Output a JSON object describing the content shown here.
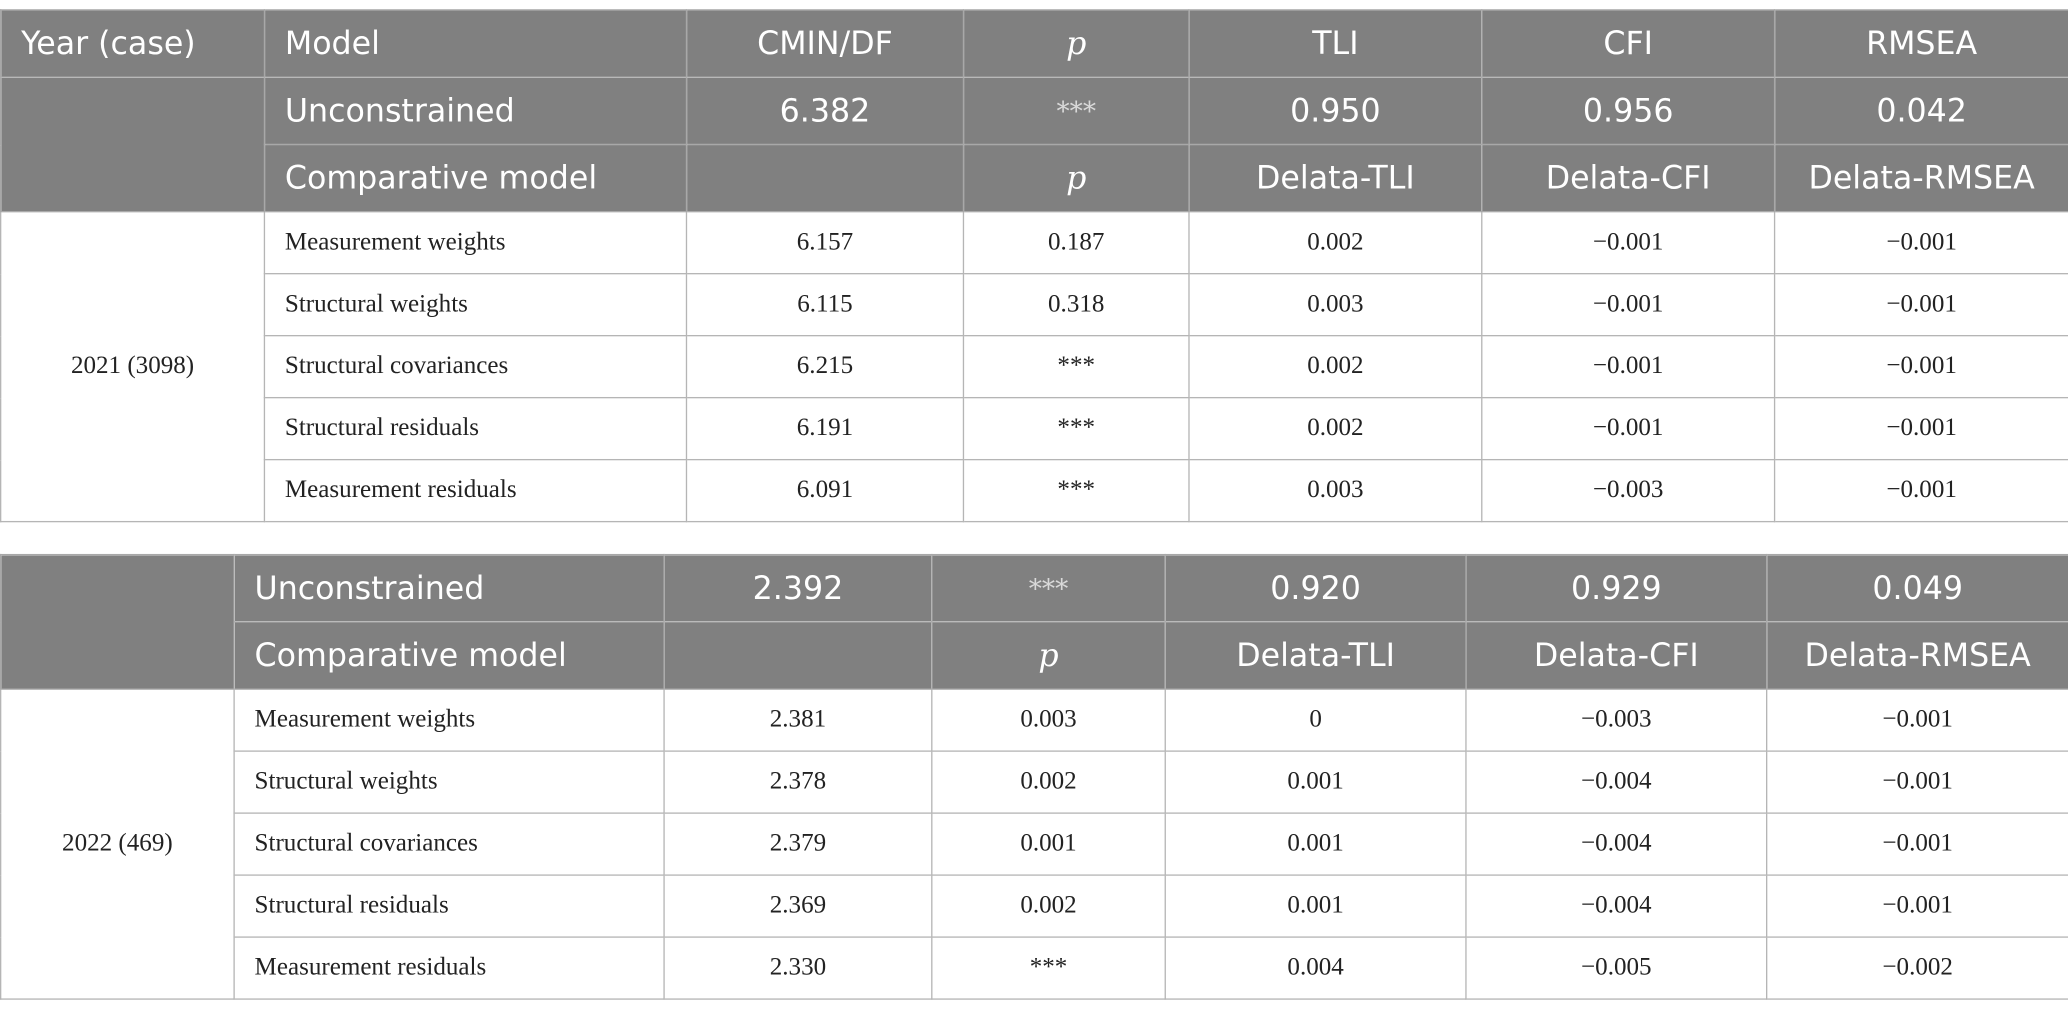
{
  "tables": [
    {
      "header": [
        "Year (case)",
        "Model",
        "CMIN/DF",
        "p",
        "TLI",
        "CFI",
        "RMSEA"
      ],
      "unconstrained": [
        "Unconstrained",
        "6.382",
        "***",
        "0.950",
        "0.956",
        "0.042"
      ],
      "comparative": [
        "Comparative model",
        "p",
        "Delata-TLI",
        "Delata-CFI",
        "Delata-RMSEA"
      ],
      "year": "2021 (3098)",
      "rows": [
        [
          "Measurement weights",
          "6.157",
          "0.187",
          "0.002",
          "−0.001",
          "−0.001"
        ],
        [
          "Structural weights",
          "6.115",
          "0.318",
          "0.003",
          "−0.001",
          "−0.001"
        ],
        [
          "Structural covariances",
          "6.215",
          "***",
          "0.002",
          "−0.001",
          "−0.001"
        ],
        [
          "Structural residuals",
          "6.191",
          "***",
          "0.002",
          "−0.001",
          "−0.001"
        ],
        [
          "Measurement residuals",
          "6.091",
          "***",
          "0.003",
          "−0.003",
          "−0.001"
        ]
      ]
    },
    {
      "unconstrained": [
        "Unconstrained",
        "2.392",
        "***",
        "0.920",
        "0.929",
        "0.049"
      ],
      "comparative": [
        "Comparative model",
        "p",
        "Delata-TLI",
        "Delata-CFI",
        "Delata-RMSEA"
      ],
      "year": "2022 (469)",
      "rows": [
        [
          "Measurement weights",
          "2.381",
          "0.003",
          "0",
          "−0.003",
          "−0.001"
        ],
        [
          "Structural weights",
          "2.378",
          "0.002",
          "0.001",
          "−0.004",
          "−0.001"
        ],
        [
          "Structural covariances",
          "2.379",
          "0.001",
          "0.001",
          "−0.004",
          "−0.001"
        ],
        [
          "Structural residuals",
          "2.369",
          "0.002",
          "0.001",
          "−0.004",
          "−0.001"
        ],
        [
          "Measurement residuals",
          "2.330",
          "***",
          "0.004",
          "−0.005",
          "−0.002"
        ]
      ]
    }
  ]
}
